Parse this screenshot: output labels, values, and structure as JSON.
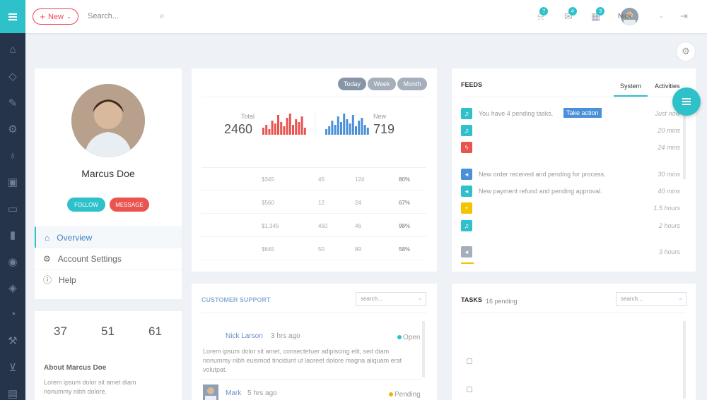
{
  "header": {
    "new_label": "New",
    "search_placeholder": "Search...",
    "notifications": [
      {
        "icon": "bell-icon",
        "count": "7"
      },
      {
        "icon": "envelope-icon",
        "count": "4"
      },
      {
        "icon": "calendar-icon",
        "count": "3"
      }
    ],
    "user_name": "Nick"
  },
  "profile": {
    "name": "Marcus Doe",
    "follow_label": "FOLLOW",
    "message_label": "MESSAGE",
    "menu": [
      {
        "icon": "home-icon",
        "label": "Overview"
      },
      {
        "icon": "gear-icon",
        "label": "Account Settings"
      },
      {
        "icon": "info-icon",
        "label": "Help"
      }
    ],
    "stats": [
      "37",
      "51",
      "61"
    ],
    "about_title": "About Marcus Doe",
    "about_text": "Lorem ipsum dolor sit amet diam nonummy nibh dolore."
  },
  "summary": {
    "tabs": [
      "Today",
      "Week",
      "Month"
    ],
    "total_label": "Total",
    "total_value": "2460",
    "new_label": "New",
    "new_value": "719",
    "colors": {
      "total": "#e9544f",
      "new": "#4a90d9"
    },
    "table": [
      [
        "$345",
        "45",
        "124",
        "80%"
      ],
      [
        "$560",
        "12",
        "24",
        "67%"
      ],
      [
        "$1,345",
        "450",
        "46",
        "98%"
      ],
      [
        "$645",
        "50",
        "89",
        "58%"
      ]
    ]
  },
  "support": {
    "title": "CUSTOMER SUPPORT",
    "search_placeholder": "search...",
    "tickets": [
      {
        "name": "Nick Larson",
        "time": "3 hrs ago",
        "status": "Open",
        "text": "Lorem ipsum dolor sit amet, consectetuer adipiscing elit, sed diam nonummy nibh euismod tincidunt ut laoreet dolore magna aliquam erat volutpat."
      },
      {
        "name": "Mark",
        "time": "5 hrs ago",
        "status": "Pending"
      }
    ]
  },
  "feeds": {
    "title": "FEEDS",
    "tabs": [
      "System",
      "Activities"
    ],
    "items": [
      {
        "icon": "bell-icon",
        "color": "#2fc1c9",
        "text": "You have 4 pending tasks.",
        "action": "Take action",
        "time": "Just now"
      },
      {
        "icon": "bell-icon",
        "color": "#2fc1c9",
        "text": "",
        "time": "20 mins"
      },
      {
        "icon": "bolt-icon",
        "color": "#e9544f",
        "text": "",
        "time": "24 mins"
      },
      {
        "icon": "megaphone-icon",
        "color": "#4a90d9",
        "text": "New order received and pending for process.",
        "time": "30 mins"
      },
      {
        "icon": "megaphone-icon",
        "color": "#2fc1c9",
        "text": "New payment refund and pending approval.",
        "time": "40 mins"
      },
      {
        "icon": "plus-icon",
        "color": "#f2c500",
        "text": "",
        "time": "1.5 hours"
      },
      {
        "icon": "bell-icon",
        "color": "#2fc1c9",
        "text": "",
        "time": "2 hours"
      },
      {
        "icon": "megaphone-icon",
        "color": "#a5aebb",
        "text": "",
        "time": "3 hours"
      }
    ]
  },
  "tasks": {
    "title": "TASKS",
    "pending": "16 pending",
    "search_placeholder": "search..."
  }
}
